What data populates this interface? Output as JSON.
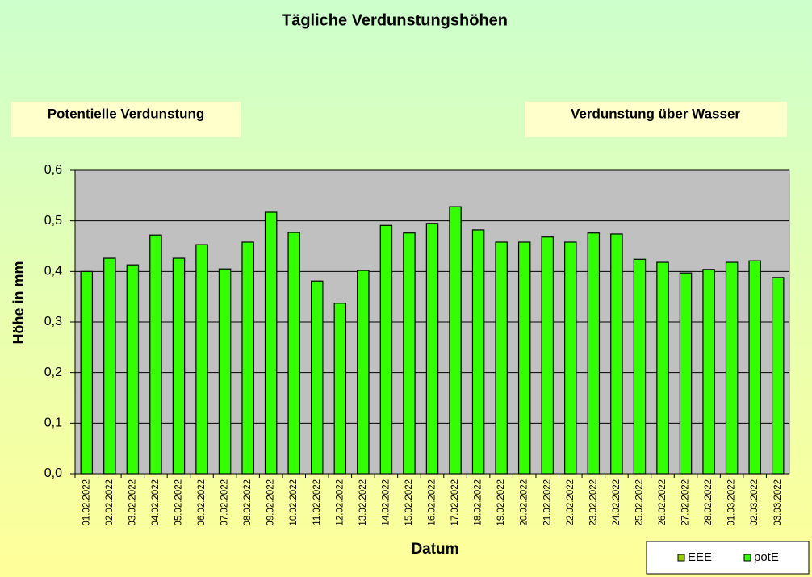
{
  "chart_data": {
    "type": "bar",
    "title": "Tägliche Verdunstungshöhen",
    "panels": [
      {
        "text": "Potentielle Verdunstung",
        "color": "#22dd22"
      },
      {
        "text": "Verdunstung über Wasser",
        "color": "#99bb00"
      }
    ],
    "x_label": "Datum",
    "y_label": "Höhe in mm",
    "categories": [
      "01.02.2022",
      "02.02.2022",
      "03.02.2022",
      "04.02.2022",
      "05.02.2022",
      "06.02.2022",
      "07.02.2022",
      "08.02.2022",
      "09.02.2022",
      "10.02.2022",
      "11.02.2022",
      "12.02.2022",
      "13.02.2022",
      "14.02.2022",
      "15.02.2022",
      "16.02.2022",
      "17.02.2022",
      "18.02.2022",
      "19.02.2022",
      "20.02.2022",
      "21.02.2022",
      "22.02.2022",
      "23.02.2022",
      "24.02.2022",
      "25.02.2022",
      "26.02.2022",
      "27.02.2022",
      "28.02.2022",
      "01.03.2022",
      "02.03.2022",
      "03.03.2022"
    ],
    "series": [
      {
        "name": "EEE",
        "color": "#99cc00",
        "values": [
          null,
          null,
          null,
          null,
          null,
          null,
          null,
          null,
          null,
          null,
          null,
          null,
          null,
          null,
          null,
          null,
          null,
          null,
          null,
          null,
          null,
          null,
          null,
          null,
          null,
          null,
          null,
          null,
          null,
          null,
          null
        ]
      },
      {
        "name": "potE",
        "color": "#33ff00",
        "values": [
          0.4,
          0.426,
          0.413,
          0.472,
          0.426,
          0.453,
          0.405,
          0.458,
          0.517,
          0.477,
          0.381,
          0.337,
          0.402,
          0.491,
          0.476,
          0.495,
          0.528,
          0.482,
          0.458,
          0.458,
          0.468,
          0.458,
          0.476,
          0.474,
          0.424,
          0.418,
          0.397,
          0.404,
          0.418,
          0.421,
          0.388
        ]
      }
    ],
    "ylim": [
      0,
      0.6
    ],
    "yticks": [
      {
        "value": 0,
        "label": "0,0"
      },
      {
        "value": 0.1,
        "label": "0,1"
      },
      {
        "value": 0.2,
        "label": "0,2"
      },
      {
        "value": 0.3,
        "label": "0,3"
      },
      {
        "value": 0.4,
        "label": "0,4"
      },
      {
        "value": 0.5,
        "label": "0,5"
      },
      {
        "value": 0.6,
        "label": "0,6"
      }
    ],
    "grid": true,
    "legend": "bottom-right"
  }
}
